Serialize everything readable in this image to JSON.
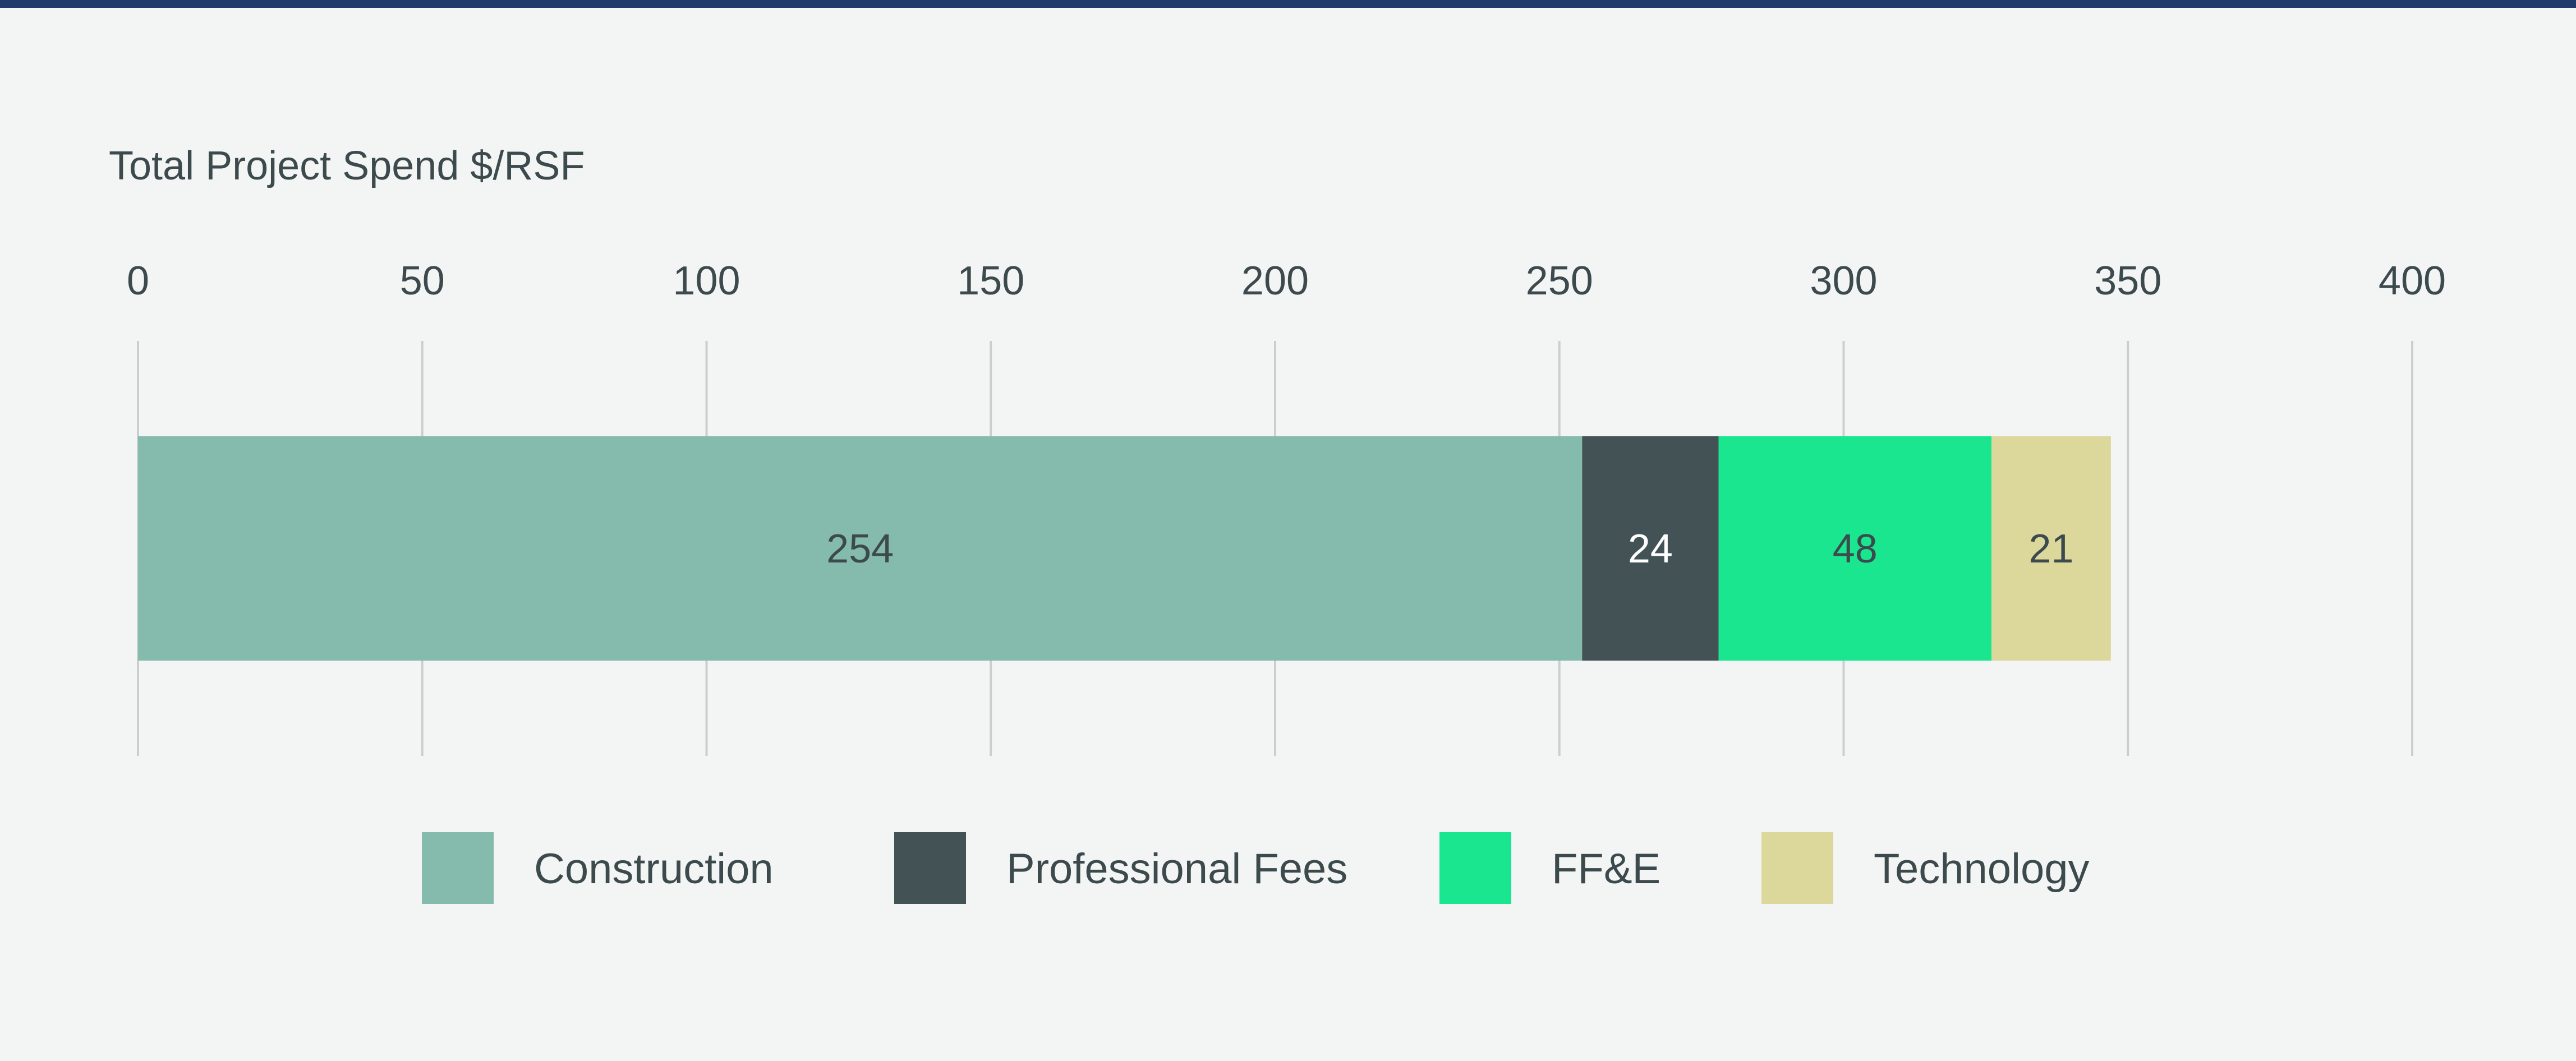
{
  "chart_data": {
    "type": "bar",
    "orientation": "horizontal",
    "stacked": true,
    "title": "Total Project Spend $/RSF",
    "xlabel": "",
    "ylabel": "",
    "xlim": [
      0,
      400
    ],
    "ticks": [
      "0",
      "50",
      "100",
      "150",
      "200",
      "250",
      "300",
      "350",
      "400"
    ],
    "tick_values": [
      0,
      50,
      100,
      150,
      200,
      250,
      300,
      350,
      400
    ],
    "tick_position": "top",
    "grid": true,
    "legend_position": "bottom-center",
    "series": [
      {
        "name": "Construction",
        "value": 254,
        "label": "254",
        "color": "#84bbad",
        "label_color": "#3d4a4d"
      },
      {
        "name": "Professional Fees",
        "value": 24,
        "label": "24",
        "color": "#435254",
        "label_color": "#ffffff"
      },
      {
        "name": "FF&E",
        "value": 48,
        "label": "48",
        "color": "#19e68f",
        "label_color": "#3d4a4d"
      },
      {
        "name": "Technology",
        "value": 21,
        "label": "21",
        "color": "#dcd89c",
        "label_color": "#3d4a4d"
      }
    ]
  },
  "colors": {
    "background": "#f3f5f4",
    "top_rule": "#1f3a6b",
    "text": "#3d4a4d",
    "grid": "#c9cfcf"
  }
}
